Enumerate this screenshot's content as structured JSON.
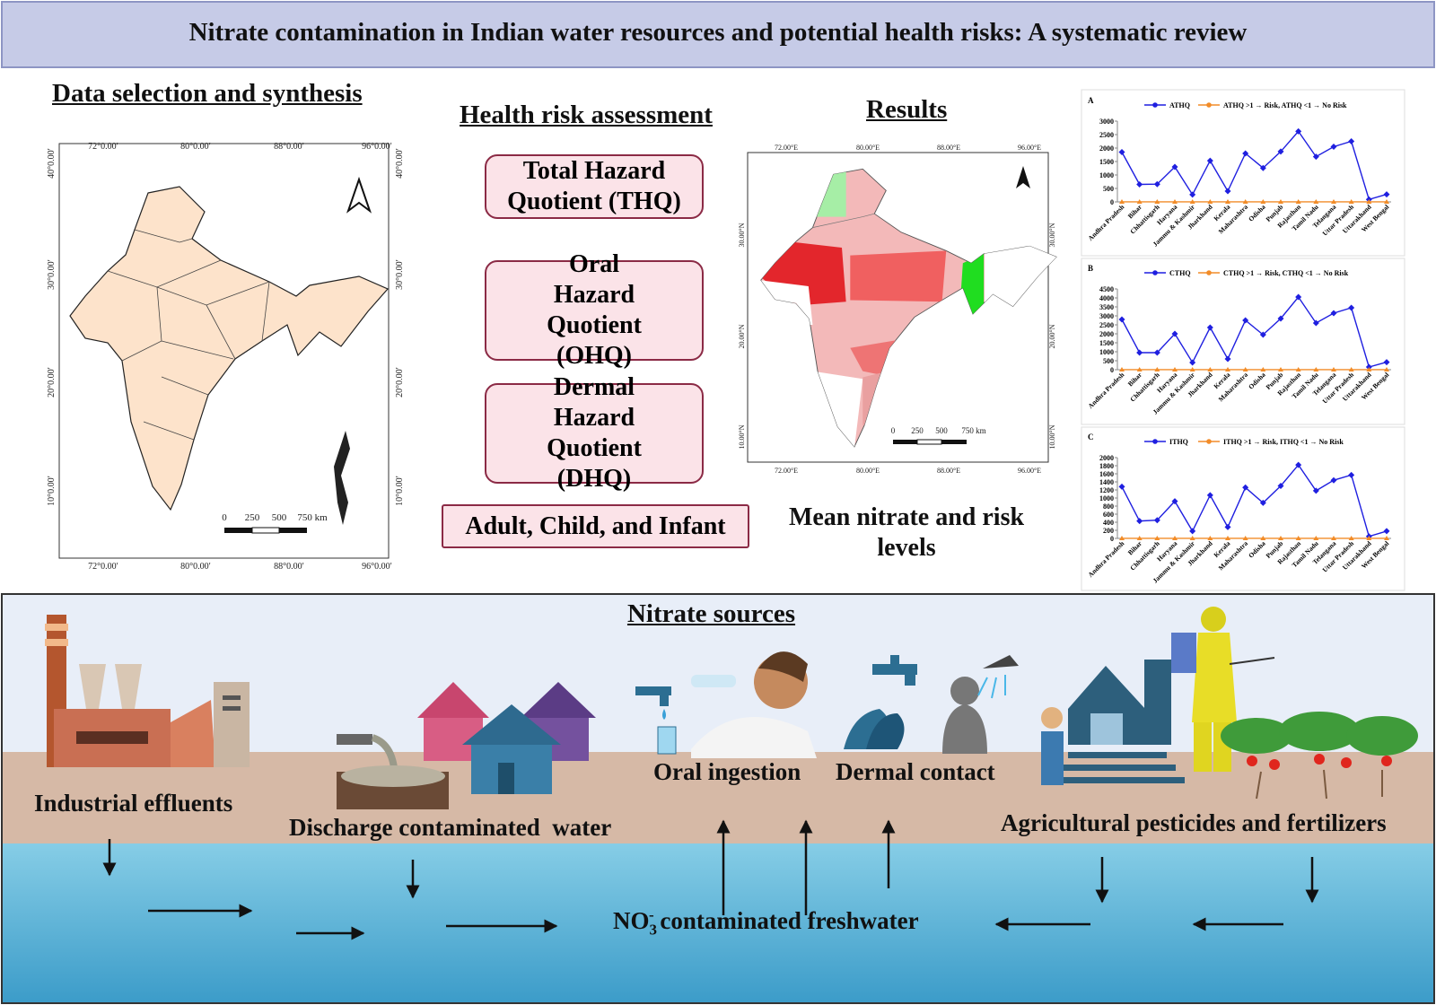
{
  "title": "Nitrate contamination in Indian water resources and potential health risks: A systematic review",
  "data_selection": {
    "heading": "Data selection and synthesis",
    "lon_labels": [
      "72°0.00′",
      "80°0.00′",
      "88°0.00′",
      "96°0.00′"
    ],
    "lat_labels": [
      "40°0.00′",
      "30°0.00′",
      "20°0.00′",
      "10°0.00′"
    ],
    "scale_labels": [
      "0",
      "250",
      "500",
      "750 km"
    ]
  },
  "health_risk": {
    "heading": "Health risk assessment",
    "boxes": [
      "Total Hazard Quotient (THQ)",
      "Oral Hazard Quotient (OHQ)",
      "Dermal Hazard Quotient (DHQ)"
    ],
    "groups": "Adult, Child, and Infant"
  },
  "results": {
    "heading": "Results",
    "lon_labels": [
      "72.00°E",
      "80.00°E",
      "88.00°E",
      "96.00°E"
    ],
    "lat_labels": [
      "30.00°N",
      "20.00°N",
      "10.00°N"
    ],
    "scale_labels": [
      "0",
      "250",
      "500",
      "750 km"
    ],
    "caption": "Mean nitrate and risk levels"
  },
  "charts": [
    {
      "panel": "A",
      "type": "line",
      "categories": [
        "Andhra Pradesh",
        "Bihar",
        "Chhattisgarh",
        "Haryana",
        "Jammu & Kashmir",
        "Jharkhand",
        "Kerala",
        "Maharashtra",
        "Odisha",
        "Punjab",
        "Rajasthan",
        "Tamil Nadu",
        "Telangana",
        "Uttar Pradesh",
        "Uttarakhand",
        "West Bengal"
      ],
      "series": [
        {
          "name": "ATHQ",
          "color": "#1f1fe0",
          "values": [
            1850,
            650,
            660,
            1300,
            270,
            1530,
            400,
            1800,
            1260,
            1870,
            2620,
            1680,
            2050,
            2250,
            90,
            280
          ]
        },
        {
          "name": "ATHQ >1 → Risk, ATHQ <1 → No Risk",
          "color": "#f28c28",
          "values": [
            1,
            1,
            1,
            1,
            1,
            1,
            1,
            1,
            1,
            1,
            1,
            1,
            1,
            1,
            1,
            1
          ]
        }
      ],
      "ylim": [
        0,
        3000
      ],
      "yticks": [
        0,
        500,
        1000,
        1500,
        2000,
        2500,
        3000
      ]
    },
    {
      "panel": "B",
      "type": "line",
      "categories": [
        "Andhra Pradesh",
        "Bihar",
        "Chhattisgarh",
        "Haryana",
        "Jammu & Kashmir",
        "Jharkhand",
        "Kerala",
        "Maharashtra",
        "Odisha",
        "Punjab",
        "Rajasthan",
        "Tamil Nadu",
        "Telangana",
        "Uttar Pradesh",
        "Uttarakhand",
        "West Bengal"
      ],
      "series": [
        {
          "name": "CTHQ",
          "color": "#1f1fe0",
          "values": [
            2800,
            950,
            950,
            2000,
            400,
            2350,
            600,
            2750,
            1950,
            2850,
            4050,
            2600,
            3150,
            3450,
            150,
            420
          ]
        },
        {
          "name": "CTHQ >1 → Risk, CTHQ <1 → No Risk",
          "color": "#f28c28",
          "values": [
            1,
            1,
            1,
            1,
            1,
            1,
            1,
            1,
            1,
            1,
            1,
            1,
            1,
            1,
            1,
            1
          ]
        }
      ],
      "ylim": [
        0,
        4500
      ],
      "yticks": [
        0,
        500,
        1000,
        1500,
        2000,
        2500,
        3000,
        3500,
        4000,
        4500
      ]
    },
    {
      "panel": "C",
      "type": "line",
      "categories": [
        "Andhra Pradesh",
        "Bihar",
        "Chhattisgarh",
        "Haryana",
        "Jammu & Kashmir",
        "Jharkhand",
        "Kerala",
        "Maharashtra",
        "Odisha",
        "Punjab",
        "Rajasthan",
        "Tamil Nadu",
        "Telangana",
        "Uttar Pradesh",
        "Uttarakhand",
        "West Bengal"
      ],
      "series": [
        {
          "name": "ITHQ",
          "color": "#1f1fe0",
          "values": [
            1280,
            430,
            450,
            920,
            180,
            1070,
            280,
            1260,
            880,
            1300,
            1820,
            1180,
            1440,
            1570,
            50,
            180
          ]
        },
        {
          "name": "ITHQ >1 → Risk, ITHQ <1 → No Risk",
          "color": "#f28c28",
          "values": [
            1,
            1,
            1,
            1,
            1,
            1,
            1,
            1,
            1,
            1,
            1,
            1,
            1,
            1,
            1,
            1
          ]
        }
      ],
      "ylim": [
        0,
        2000
      ],
      "yticks": [
        0,
        200,
        400,
        600,
        800,
        1000,
        1200,
        1400,
        1600,
        1800,
        2000
      ]
    }
  ],
  "sources": {
    "heading": "Nitrate sources",
    "labels": [
      "Industrial effluents",
      "Discharge contaminated  water",
      "Oral ingestion",
      "Dermal contact",
      "Agricultural pesticides and fertilizers"
    ],
    "freshwater": {
      "base": "NO",
      "sub": "3",
      "sup": "-",
      "rest": "contaminated freshwater"
    }
  }
}
